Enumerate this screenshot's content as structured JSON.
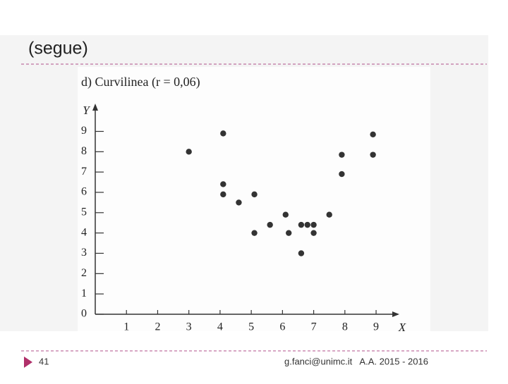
{
  "slide": {
    "title": "(segue)",
    "page_number": "41",
    "footer": "g.fanci@unimc.it   A.A. 2015 - 2016"
  },
  "chart_data": {
    "type": "scatter",
    "title": "d) Curvilinea (r = 0,06)",
    "x_label": "X",
    "y_label": "Y",
    "color": "#333333",
    "x": [
      3,
      4.1,
      4.1,
      4.1,
      4.6,
      5.1,
      5.1,
      5.6,
      6.1,
      6.2,
      6.6,
      6.8,
      7.0,
      7.0,
      6.6,
      7.5,
      7.9,
      7.9,
      8.9,
      8.9
    ],
    "values": [
      8,
      8.9,
      6.4,
      5.9,
      5.5,
      5.9,
      4.0,
      4.4,
      4.9,
      4.0,
      4.4,
      4.4,
      4.4,
      4.0,
      3.0,
      4.9,
      7.85,
      6.9,
      8.85,
      7.85
    ],
    "xlim": [
      0,
      9.7
    ],
    "ylim": [
      0,
      10.3
    ],
    "xticks": [
      1,
      2,
      3,
      4,
      5,
      6,
      7,
      8,
      9
    ],
    "yticks": [
      0,
      1,
      2,
      3,
      4,
      5,
      6,
      7,
      8,
      9
    ]
  }
}
